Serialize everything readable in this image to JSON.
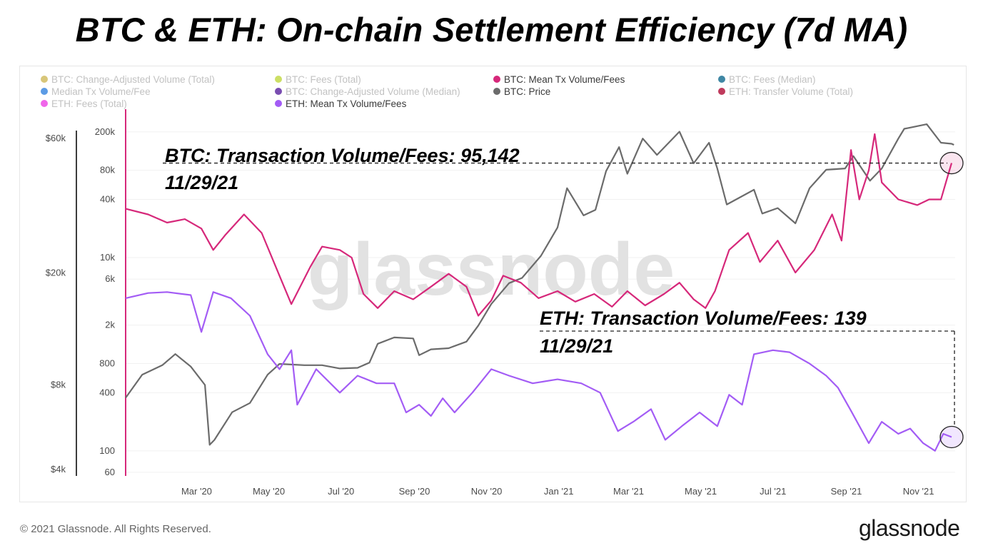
{
  "title": "BTC & ETH: On-chain Settlement Efficiency (7d MA)",
  "footer": {
    "copyright": "© 2021 Glassnode. All Rights Reserved.",
    "logo": "glassnode",
    "watermark": "glassnode"
  },
  "colors": {
    "btc_mean_tx_volume_fees": "#d6287a",
    "eth_mean_tx_volume_fees": "#a35cf5",
    "btc_price": "#6b6b6b"
  },
  "chart_data": {
    "type": "line",
    "x_axis": {
      "ticks": [
        "Mar '20",
        "May '20",
        "Jul '20",
        "Sep '20",
        "Nov '20",
        "Jan '21",
        "Mar '21",
        "May '21",
        "Jul '21",
        "Sep '21",
        "Nov '21"
      ],
      "range": [
        "2020-01-01",
        "2021-12-02"
      ]
    },
    "price_axis": {
      "scale": "log",
      "ticks": [
        "$60k",
        "$20k",
        "$8k",
        "$4k"
      ],
      "range": [
        3800,
        72000
      ]
    },
    "ratio_axis": {
      "scale": "log",
      "ticks": [
        "200k",
        "80k",
        "40k",
        "10k",
        "6k",
        "2k",
        "800",
        "400",
        "100",
        "60"
      ],
      "range": [
        55,
        290000
      ]
    },
    "legend": {
      "placement": "top",
      "items": [
        {
          "label": "BTC: Change-Adjusted Volume (Total)",
          "color": "#d4c06a",
          "active": false
        },
        {
          "label": "BTC: Fees (Total)",
          "color": "#c7dc54",
          "active": false
        },
        {
          "label": "BTC: Mean Tx Volume/Fees",
          "color": "#d6287a",
          "active": true
        },
        {
          "label": "BTC: Fees (Median)",
          "color": "#2a7a9a",
          "active": false
        },
        {
          "label": "Median Tx Volume/Fee",
          "color": "#4a90e2",
          "active": false
        },
        {
          "label": "BTC: Change-Adjusted Volume (Median)",
          "color": "#6a3aa8",
          "active": false
        },
        {
          "label": "BTC: Price",
          "color": "#6b6b6b",
          "active": true
        },
        {
          "label": "ETH: Transfer Volume (Total)",
          "color": "#b8254a",
          "active": false
        },
        {
          "label": "ETH: Fees (Total)",
          "color": "#ee55e8",
          "active": false
        },
        {
          "label": "ETH: Mean Tx Volume/Fees",
          "color": "#a35cf5",
          "active": true
        }
      ]
    },
    "series": [
      {
        "name": "BTC: Price",
        "axis": "price",
        "points": [
          [
            "2020-01-01",
            7200
          ],
          [
            "2020-01-15",
            8700
          ],
          [
            "2020-02-01",
            9400
          ],
          [
            "2020-02-12",
            10300
          ],
          [
            "2020-02-25",
            9300
          ],
          [
            "2020-03-08",
            8000
          ],
          [
            "2020-03-12",
            4900
          ],
          [
            "2020-03-16",
            5100
          ],
          [
            "2020-03-31",
            6400
          ],
          [
            "2020-04-15",
            6900
          ],
          [
            "2020-04-30",
            8700
          ],
          [
            "2020-05-10",
            9500
          ],
          [
            "2020-05-31",
            9400
          ],
          [
            "2020-06-15",
            9400
          ],
          [
            "2020-06-30",
            9150
          ],
          [
            "2020-07-15",
            9200
          ],
          [
            "2020-07-25",
            9600
          ],
          [
            "2020-08-01",
            11200
          ],
          [
            "2020-08-15",
            11800
          ],
          [
            "2020-08-31",
            11700
          ],
          [
            "2020-09-05",
            10200
          ],
          [
            "2020-09-15",
            10700
          ],
          [
            "2020-09-30",
            10800
          ],
          [
            "2020-10-15",
            11400
          ],
          [
            "2020-10-25",
            13000
          ],
          [
            "2020-11-05",
            15500
          ],
          [
            "2020-11-20",
            18400
          ],
          [
            "2020-12-01",
            19200
          ],
          [
            "2020-12-17",
            23000
          ],
          [
            "2020-12-31",
            29000
          ],
          [
            "2021-01-08",
            40000
          ],
          [
            "2021-01-22",
            32000
          ],
          [
            "2021-02-01",
            33500
          ],
          [
            "2021-02-10",
            46000
          ],
          [
            "2021-02-21",
            56000
          ],
          [
            "2021-02-28",
            45000
          ],
          [
            "2021-03-13",
            60000
          ],
          [
            "2021-03-25",
            52500
          ],
          [
            "2021-04-13",
            63500
          ],
          [
            "2021-04-25",
            49000
          ],
          [
            "2021-05-08",
            58000
          ],
          [
            "2021-05-15",
            47000
          ],
          [
            "2021-05-23",
            35000
          ],
          [
            "2021-06-15",
            39500
          ],
          [
            "2021-06-22",
            32500
          ],
          [
            "2021-07-05",
            34000
          ],
          [
            "2021-07-20",
            30000
          ],
          [
            "2021-08-01",
            40000
          ],
          [
            "2021-08-15",
            46500
          ],
          [
            "2021-08-31",
            47000
          ],
          [
            "2021-09-07",
            52000
          ],
          [
            "2021-09-21",
            42500
          ],
          [
            "2021-10-01",
            47000
          ],
          [
            "2021-10-15",
            60000
          ],
          [
            "2021-10-20",
            65000
          ],
          [
            "2021-11-08",
            67500
          ],
          [
            "2021-11-20",
            58000
          ],
          [
            "2021-11-29",
            57500
          ],
          [
            "2021-12-01",
            57000
          ]
        ]
      },
      {
        "name": "BTC: Mean Tx Volume/Fees",
        "axis": "ratio",
        "points": [
          [
            "2020-01-01",
            32000
          ],
          [
            "2020-01-20",
            28000
          ],
          [
            "2020-02-05",
            23000
          ],
          [
            "2020-02-20",
            25000
          ],
          [
            "2020-03-05",
            20000
          ],
          [
            "2020-03-15",
            12000
          ],
          [
            "2020-03-25",
            17000
          ],
          [
            "2020-04-10",
            28000
          ],
          [
            "2020-04-25",
            18000
          ],
          [
            "2020-05-10",
            6500
          ],
          [
            "2020-05-20",
            3300
          ],
          [
            "2020-06-05",
            8000
          ],
          [
            "2020-06-15",
            13000
          ],
          [
            "2020-06-30",
            12000
          ],
          [
            "2020-07-10",
            10000
          ],
          [
            "2020-07-20",
            4200
          ],
          [
            "2020-08-01",
            3000
          ],
          [
            "2020-08-15",
            4500
          ],
          [
            "2020-08-31",
            3700
          ],
          [
            "2020-09-15",
            5000
          ],
          [
            "2020-09-30",
            6800
          ],
          [
            "2020-10-15",
            5000
          ],
          [
            "2020-10-25",
            2500
          ],
          [
            "2020-11-05",
            3600
          ],
          [
            "2020-11-15",
            6500
          ],
          [
            "2020-11-30",
            5500
          ],
          [
            "2020-12-15",
            3800
          ],
          [
            "2020-12-31",
            4500
          ],
          [
            "2021-01-15",
            3500
          ],
          [
            "2021-01-31",
            4200
          ],
          [
            "2021-02-15",
            3100
          ],
          [
            "2021-02-28",
            4500
          ],
          [
            "2021-03-15",
            3200
          ],
          [
            "2021-03-31",
            4200
          ],
          [
            "2021-04-13",
            5500
          ],
          [
            "2021-04-25",
            3700
          ],
          [
            "2021-05-05",
            3000
          ],
          [
            "2021-05-13",
            4500
          ],
          [
            "2021-05-25",
            12000
          ],
          [
            "2021-06-10",
            18000
          ],
          [
            "2021-06-20",
            9000
          ],
          [
            "2021-07-05",
            15000
          ],
          [
            "2021-07-20",
            7000
          ],
          [
            "2021-08-05",
            12000
          ],
          [
            "2021-08-20",
            28000
          ],
          [
            "2021-08-28",
            15000
          ],
          [
            "2021-09-05",
            130000
          ],
          [
            "2021-09-12",
            40000
          ],
          [
            "2021-09-20",
            80000
          ],
          [
            "2021-09-25",
            190000
          ],
          [
            "2021-10-01",
            60000
          ],
          [
            "2021-10-15",
            40000
          ],
          [
            "2021-10-31",
            35000
          ],
          [
            "2021-11-10",
            40000
          ],
          [
            "2021-11-20",
            40000
          ],
          [
            "2021-11-25",
            65000
          ],
          [
            "2021-11-29",
            95142
          ]
        ]
      },
      {
        "name": "ETH: Mean Tx Volume/Fees",
        "axis": "ratio",
        "points": [
          [
            "2020-01-01",
            3800
          ],
          [
            "2020-01-20",
            4300
          ],
          [
            "2020-02-05",
            4400
          ],
          [
            "2020-02-25",
            4100
          ],
          [
            "2020-03-05",
            1700
          ],
          [
            "2020-03-15",
            4400
          ],
          [
            "2020-03-30",
            3800
          ],
          [
            "2020-04-15",
            2500
          ],
          [
            "2020-04-30",
            1000
          ],
          [
            "2020-05-10",
            700
          ],
          [
            "2020-05-20",
            1100
          ],
          [
            "2020-05-25",
            300
          ],
          [
            "2020-06-10",
            700
          ],
          [
            "2020-06-30",
            400
          ],
          [
            "2020-07-15",
            600
          ],
          [
            "2020-07-31",
            500
          ],
          [
            "2020-08-15",
            500
          ],
          [
            "2020-08-25",
            250
          ],
          [
            "2020-09-05",
            300
          ],
          [
            "2020-09-15",
            230
          ],
          [
            "2020-09-25",
            350
          ],
          [
            "2020-10-05",
            250
          ],
          [
            "2020-10-20",
            400
          ],
          [
            "2020-11-05",
            700
          ],
          [
            "2020-11-20",
            600
          ],
          [
            "2020-12-10",
            500
          ],
          [
            "2020-12-31",
            550
          ],
          [
            "2021-01-20",
            500
          ],
          [
            "2021-02-05",
            400
          ],
          [
            "2021-02-20",
            160
          ],
          [
            "2021-03-05",
            200
          ],
          [
            "2021-03-20",
            270
          ],
          [
            "2021-04-01",
            130
          ],
          [
            "2021-04-15",
            180
          ],
          [
            "2021-04-30",
            250
          ],
          [
            "2021-05-15",
            180
          ],
          [
            "2021-05-25",
            380
          ],
          [
            "2021-06-05",
            300
          ],
          [
            "2021-06-15",
            1000
          ],
          [
            "2021-07-01",
            1100
          ],
          [
            "2021-07-15",
            1050
          ],
          [
            "2021-08-01",
            800
          ],
          [
            "2021-08-15",
            600
          ],
          [
            "2021-08-25",
            450
          ],
          [
            "2021-09-05",
            260
          ],
          [
            "2021-09-20",
            120
          ],
          [
            "2021-10-01",
            200
          ],
          [
            "2021-10-15",
            150
          ],
          [
            "2021-10-25",
            170
          ],
          [
            "2021-11-05",
            120
          ],
          [
            "2021-11-15",
            100
          ],
          [
            "2021-11-22",
            150
          ],
          [
            "2021-11-29",
            139
          ]
        ]
      }
    ],
    "annotations": [
      {
        "text": "BTC: Transaction Volume/Fees: 95,142",
        "date": "11/29/21",
        "series": "BTC: Mean Tx Volume/Fees",
        "value": 95142
      },
      {
        "text": "ETH: Transaction Volume/Fees: 139",
        "date": "11/29/21",
        "series": "ETH: Mean Tx Volume/Fees",
        "value": 139
      }
    ]
  }
}
